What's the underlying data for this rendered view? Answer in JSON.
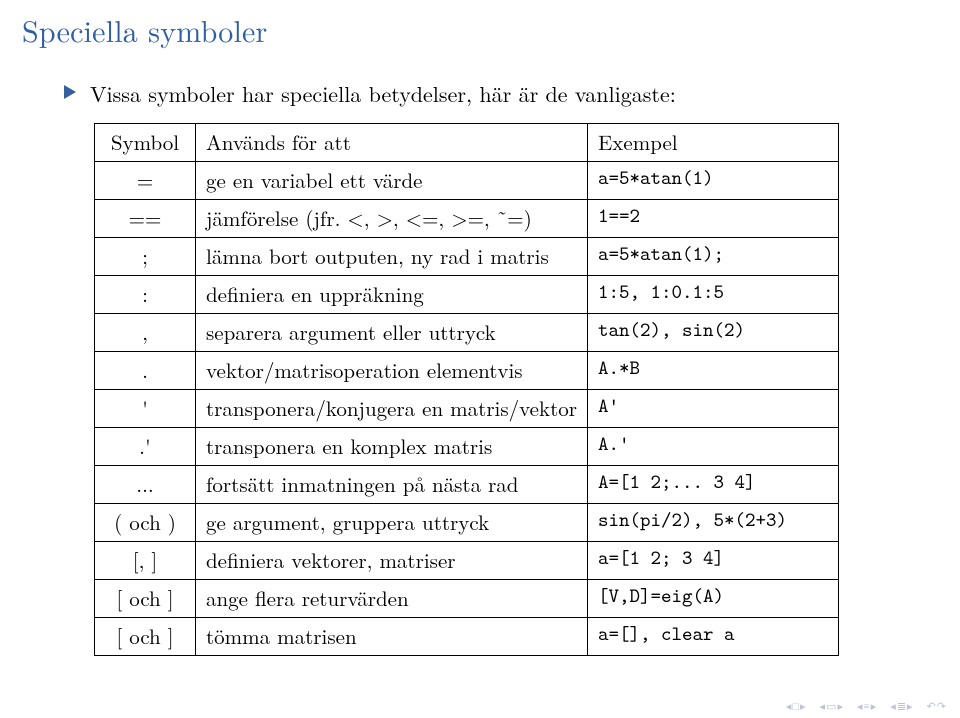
{
  "colors": {
    "title": "#2f5fa3",
    "triangle": "#36609d",
    "text": "#000000",
    "nav_light": "#cfd6e6",
    "nav_mid": "#b9c3da",
    "nav_dark": "#9ca9c8",
    "border": "#000000"
  },
  "title": "Speciella symboler",
  "bullet": "Vissa symboler har speciella betydelser, här är de vanligaste:",
  "table": {
    "header": {
      "c1": "Symbol",
      "c2": "Används för att",
      "c3": "Exempel"
    },
    "rows": [
      {
        "c1": "=",
        "c2": "ge en variabel ett värde",
        "c3": "a=5*atan(1)"
      },
      {
        "c1": "==",
        "c2": "jämförelse (jfr. <, >, <=, >=, ˜=)",
        "c3": "1==2"
      },
      {
        "c1": ";",
        "c2": "lämna bort outputen, ny rad i matris",
        "c3": "a=5*atan(1);"
      },
      {
        "c1": ":",
        "c2": "definiera en uppräkning",
        "c3": "1:5, 1:0.1:5"
      },
      {
        "c1": ",",
        "c2": "separera argument eller uttryck",
        "c3": "tan(2), sin(2)"
      },
      {
        "c1": ".",
        "c2": "vektor/matrisoperation elementvis",
        "c3": "A.*B"
      },
      {
        "c1": "'",
        "c2": "transponera/konjugera en matris/vektor",
        "c3": "A'"
      },
      {
        "c1": ".'",
        "c2": "transponera en komplex matris",
        "c3": "A.'"
      },
      {
        "c1": "...",
        "c2": "fortsätt inmatningen på nästa rad",
        "c3": "A=[1 2;... 3 4]"
      },
      {
        "c1": "( och )",
        "c2": "ge argument, gruppera uttryck",
        "c3": "sin(pi/2), 5*(2+3)"
      },
      {
        "c1": "[, ]",
        "c2": "definiera vektorer, matriser",
        "c3": "a=[1 2; 3 4]"
      },
      {
        "c1": "[ och ]",
        "c2": "ange flera returvärden",
        "c3": "[V,D]=eig(A)"
      },
      {
        "c1": "[ och ]",
        "c2": "tömma matrisen",
        "c3": "a=[], clear a"
      }
    ]
  },
  "font_sizes": {
    "title": 30,
    "body": 22,
    "table": 21,
    "mono": 20,
    "nav": 11
  }
}
